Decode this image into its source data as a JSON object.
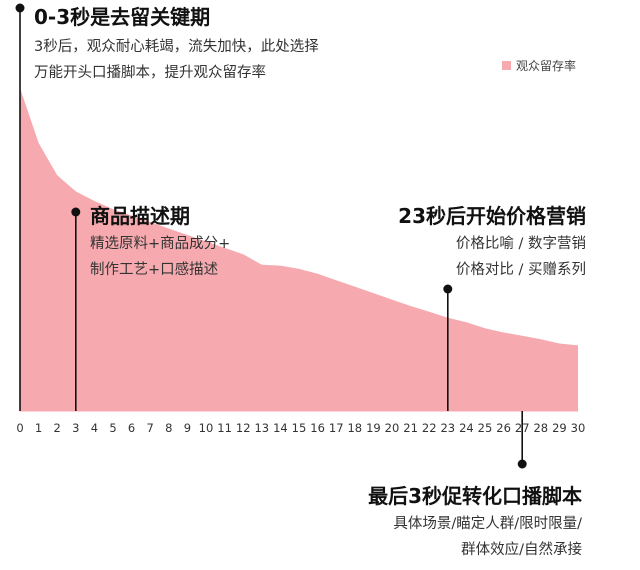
{
  "legend": {
    "label": "观众留存率",
    "color": "#f6aaaf"
  },
  "annotations": [
    {
      "id": "a1",
      "title": "0-3秒是去留关键期",
      "lines": [
        "3秒后，观众耐心耗竭，流失加快，此处选择",
        "万能开头口播脚本，提升观众留存率"
      ]
    },
    {
      "id": "a2",
      "title": "商品描述期",
      "lines": [
        "精选原料+商品成分+",
        "制作工艺+口感描述"
      ]
    },
    {
      "id": "a3",
      "title": "23秒后开始价格营销",
      "lines": [
        "价格比喻 / 数字营销",
        "价格对比 / 买赠系列"
      ]
    },
    {
      "id": "a4",
      "title": "最后3秒促转化口播脚本",
      "lines": [
        "具体场景/瞄定人群/限时限量/",
        "群体效应/自然承接"
      ]
    }
  ],
  "chart_data": {
    "type": "area",
    "series": [
      {
        "name": "观众留存率",
        "x": [
          0,
          1,
          2,
          3,
          4,
          5,
          6,
          7,
          8,
          9,
          10,
          11,
          12,
          13,
          14,
          15,
          16,
          17,
          18,
          19,
          20,
          21,
          22,
          23,
          24,
          25,
          26,
          27,
          28,
          29,
          30
        ],
        "values": [
          100,
          83,
          73,
          68,
          65,
          62.5,
          60.5,
          58.5,
          56.5,
          54.5,
          52.5,
          50.5,
          48.5,
          45.3,
          45,
          44,
          42.5,
          40.5,
          38.5,
          36.5,
          34.5,
          32.5,
          30.7,
          28.9,
          27.5,
          25.6,
          24.3,
          23.3,
          22.2,
          20.9,
          20.3
        ]
      }
    ],
    "xticks": [
      0,
      1,
      2,
      3,
      4,
      5,
      6,
      7,
      8,
      9,
      10,
      11,
      12,
      13,
      14,
      15,
      16,
      17,
      18,
      19,
      20,
      21,
      22,
      23,
      24,
      25,
      26,
      27,
      28,
      29,
      30
    ],
    "xlim": [
      0,
      30
    ],
    "ylim": [
      0,
      100
    ],
    "markers": [
      0,
      3,
      23,
      27
    ],
    "grid": false,
    "legend_position": "top-right"
  }
}
